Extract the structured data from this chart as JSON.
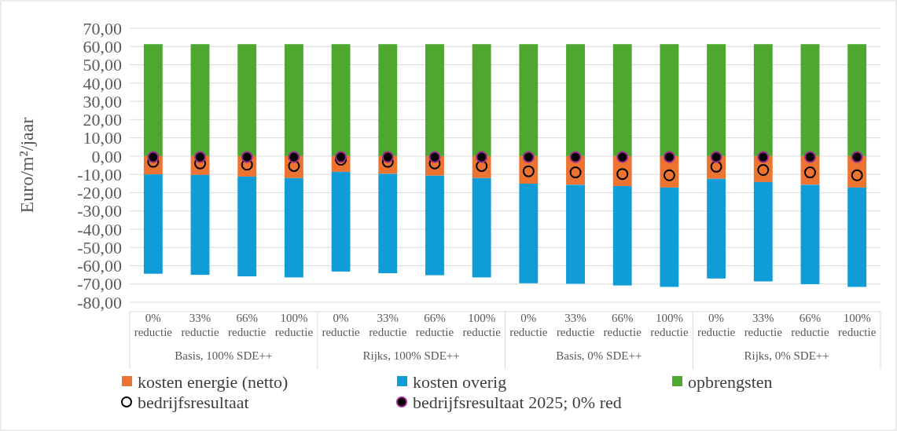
{
  "chart_data": {
    "type": "bar",
    "stacked": true,
    "ylabel": "Euro/m²/jaar",
    "categories": [
      "0% reductie",
      "33% reductie",
      "66% reductie",
      "100% reductie",
      "0% reductie",
      "33% reductie",
      "66% reductie",
      "100% reductie",
      "0% reductie",
      "33% reductie",
      "66% reductie",
      "100% reductie",
      "0% reductie",
      "33% reductie",
      "66% reductie",
      "100% reductie"
    ],
    "annotations": [
      "Basis, 100% SDE++",
      "Rijks, 100% SDE++",
      "Basis, 0% SDE++",
      "Rijks, 0% SDE++"
    ],
    "series": [
      {
        "name": "kosten energie (netto)",
        "color": "#ed7331",
        "values": [
          -10.0,
          -10.3,
          -11.2,
          -12.0,
          -8.6,
          -9.7,
          -10.7,
          -12.0,
          -15.1,
          -15.7,
          -16.4,
          -17.2,
          -12.4,
          -14.2,
          -15.7,
          -17.2
        ]
      },
      {
        "name": "kosten overig",
        "color": "#109dd7",
        "values": [
          -54.4,
          -54.7,
          -54.6,
          -54.4,
          -54.6,
          -54.4,
          -54.5,
          -54.4,
          -54.5,
          -54.2,
          -54.4,
          -54.4,
          -54.6,
          -54.4,
          -54.4,
          -54.4
        ]
      },
      {
        "name": "opbrengsten",
        "color": "#4ea72e",
        "values": [
          61.3,
          61.3,
          61.3,
          61.3,
          61.3,
          61.3,
          61.3,
          61.3,
          61.3,
          61.3,
          61.3,
          61.3,
          61.3,
          61.3,
          61.3,
          61.3
        ]
      },
      {
        "name": "bedrijfsresultaat",
        "type": "scatter",
        "color": "#000000",
        "values": [
          -3.1,
          -4.0,
          -4.7,
          -5.4,
          -2.0,
          -3.1,
          -4.0,
          -5.4,
          -8.3,
          -8.9,
          -9.8,
          -10.5,
          -5.8,
          -7.6,
          -8.9,
          -10.5
        ]
      },
      {
        "name": "bedrijfsresultaat 2025; 0% red",
        "type": "scatter",
        "color": "#000000",
        "values": [
          -0.5,
          -0.5,
          -0.5,
          -0.5,
          -0.5,
          -0.5,
          -0.5,
          -0.5,
          -0.5,
          -0.5,
          -0.5,
          -0.5,
          -0.5,
          -0.5,
          -0.5,
          -0.5
        ]
      }
    ],
    "ylim": [
      -80,
      70
    ],
    "yticks": [
      {
        "value": 70,
        "label": "70,00"
      },
      {
        "value": 60,
        "label": "60,00"
      },
      {
        "value": 50,
        "label": "50,00"
      },
      {
        "value": 40,
        "label": "40,00"
      },
      {
        "value": 30,
        "label": "30,00"
      },
      {
        "value": 20,
        "label": "20,00"
      },
      {
        "value": 10,
        "label": "10,00"
      },
      {
        "value": 0,
        "label": "0,00"
      },
      {
        "value": -10,
        "label": "-10,00"
      },
      {
        "value": -20,
        "label": "-20,00"
      },
      {
        "value": -30,
        "label": "-30,00"
      },
      {
        "value": -40,
        "label": "-40,00"
      },
      {
        "value": -50,
        "label": "-50,00"
      },
      {
        "value": -60,
        "label": "-60,00"
      },
      {
        "value": -70,
        "label": "-70,00"
      },
      {
        "value": -80,
        "label": "-80,00"
      }
    ],
    "grid": "y",
    "legend": "bottom",
    "marker": "circle"
  }
}
